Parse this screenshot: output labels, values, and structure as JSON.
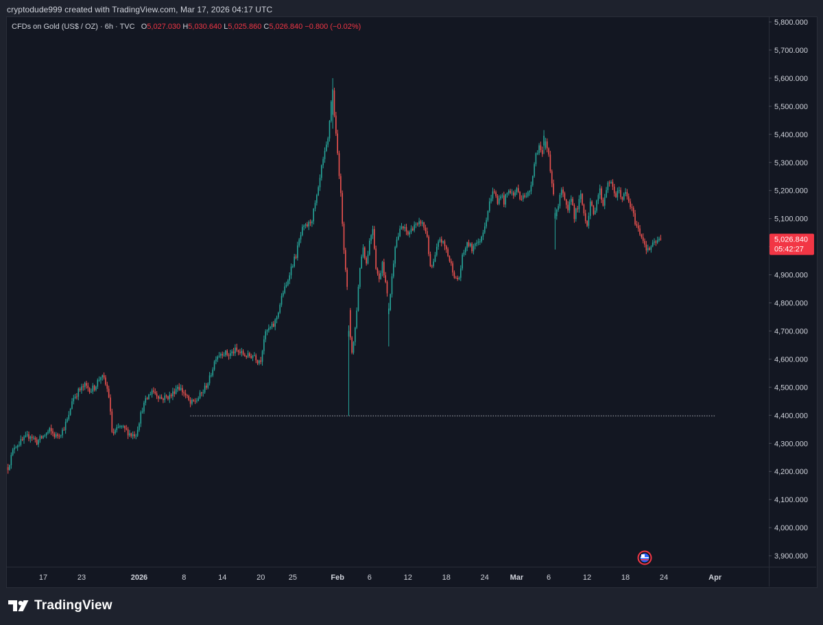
{
  "header": {
    "caption": "cryptodude999 created with TradingView.com, Mar 17, 2026 04:17 UTC"
  },
  "legend": {
    "symbol": "CFDs on Gold (US$ / OZ)",
    "interval": "6h",
    "source": "TVC",
    "o_label": "O",
    "o_value": "5,027.030",
    "h_label": "H",
    "h_value": "5,030.640",
    "l_label": "L",
    "l_value": "5,025.860",
    "c_label": "C",
    "c_value": "5,026.840",
    "change": "−0.800 (−0.02%)"
  },
  "price_tag": {
    "price": "5,026.840",
    "countdown": "05:42:27"
  },
  "brand": {
    "name": "TradingView"
  },
  "colors": {
    "up": "#26a69a",
    "down": "#ef5350",
    "background": "#131722",
    "page": "#1e222d",
    "text": "#d1d4dc",
    "tag": "#f23645"
  },
  "chart_data": {
    "type": "candlestick",
    "title": "CFDs on Gold (US$ / OZ) · 6h · TVC",
    "ylim": [
      3875,
      5810
    ],
    "y_ticks": [
      3900,
      4000,
      4100,
      4200,
      4300,
      4400,
      4500,
      4600,
      4700,
      4800,
      4900,
      5000,
      5100,
      5200,
      5300,
      5400,
      5500,
      5600,
      5700,
      5800
    ],
    "y_tick_labels": [
      "3,900.000",
      "4,000.000",
      "4,100.000",
      "4,200.000",
      "4,300.000",
      "4,400.000",
      "4,500.000",
      "4,600.000",
      "4,700.000",
      "4,800.000",
      "4,900.000",
      "5,000.000",
      "5,100.000",
      "5,200.000",
      "5,300.000",
      "5,400.000",
      "5,500.000",
      "5,600.000",
      "5,700.000",
      "5,800.000"
    ],
    "x_ticks": [
      {
        "label": "17",
        "day": 0,
        "bold": false
      },
      {
        "label": "23",
        "day": 6,
        "bold": false
      },
      {
        "label": "2026",
        "day": 15,
        "bold": true
      },
      {
        "label": "8",
        "day": 22,
        "bold": false
      },
      {
        "label": "14",
        "day": 28,
        "bold": false
      },
      {
        "label": "20",
        "day": 34,
        "bold": false
      },
      {
        "label": "25",
        "day": 39,
        "bold": false
      },
      {
        "label": "Feb",
        "day": 46,
        "bold": true
      },
      {
        "label": "6",
        "day": 51,
        "bold": false
      },
      {
        "label": "12",
        "day": 57,
        "bold": false
      },
      {
        "label": "18",
        "day": 63,
        "bold": false
      },
      {
        "label": "24",
        "day": 69,
        "bold": false
      },
      {
        "label": "Mar",
        "day": 74,
        "bold": true
      },
      {
        "label": "6",
        "day": 79,
        "bold": false
      },
      {
        "label": "12",
        "day": 85,
        "bold": false
      },
      {
        "label": "18",
        "day": 91,
        "bold": false
      },
      {
        "label": "24",
        "day": 97,
        "bold": false
      },
      {
        "label": "Apr",
        "day": 105,
        "bold": true
      }
    ],
    "horizontal_line": {
      "value": 4398,
      "start_day": 23,
      "end_day": 105,
      "style": "dotted"
    },
    "last_price": 5026.84,
    "path_points": [
      [
        -5.5,
        4215
      ],
      [
        -4.5,
        4290
      ],
      [
        -3.5,
        4305
      ],
      [
        -2.0,
        4330
      ],
      [
        -1.0,
        4305
      ],
      [
        0.0,
        4325
      ],
      [
        1.0,
        4345
      ],
      [
        2.0,
        4325
      ],
      [
        3.0,
        4345
      ],
      [
        4.0,
        4395
      ],
      [
        4.5,
        4455
      ],
      [
        5.5,
        4485
      ],
      [
        6.5,
        4505
      ],
      [
        7.5,
        4490
      ],
      [
        8.0,
        4500
      ],
      [
        9.0,
        4540
      ],
      [
        9.5,
        4525
      ],
      [
        10.2,
        4480
      ],
      [
        10.8,
        4330
      ],
      [
        12.0,
        4360
      ],
      [
        13.0,
        4345
      ],
      [
        13.8,
        4330
      ],
      [
        14.5,
        4335
      ],
      [
        15.5,
        4425
      ],
      [
        16.0,
        4450
      ],
      [
        17.0,
        4490
      ],
      [
        18.5,
        4460
      ],
      [
        20.0,
        4470
      ],
      [
        21.0,
        4505
      ],
      [
        22.0,
        4480
      ],
      [
        23.0,
        4440
      ],
      [
        24.0,
        4455
      ],
      [
        25.0,
        4485
      ],
      [
        26.0,
        4530
      ],
      [
        27.0,
        4610
      ],
      [
        28.0,
        4625
      ],
      [
        29.0,
        4615
      ],
      [
        30.0,
        4630
      ],
      [
        31.0,
        4620
      ],
      [
        32.0,
        4610
      ],
      [
        33.0,
        4615
      ],
      [
        33.5,
        4595
      ],
      [
        34.0,
        4600
      ],
      [
        34.5,
        4675
      ],
      [
        35.0,
        4700
      ],
      [
        36.0,
        4720
      ],
      [
        36.5,
        4750
      ],
      [
        37.5,
        4840
      ],
      [
        38.0,
        4860
      ],
      [
        38.5,
        4910
      ],
      [
        39.5,
        4970
      ],
      [
        40.0,
        5020
      ],
      [
        40.5,
        5060
      ],
      [
        41.5,
        5080
      ],
      [
        42.0,
        5100
      ],
      [
        43.0,
        5200
      ],
      [
        43.5,
        5280
      ],
      [
        44.5,
        5380
      ],
      [
        45.0,
        5520
      ],
      [
        45.3,
        5560
      ],
      [
        45.6,
        5430
      ],
      [
        46.2,
        5280
      ],
      [
        46.5,
        5180
      ],
      [
        47.0,
        5000
      ],
      [
        47.5,
        4850
      ],
      [
        48.0,
        4680
      ],
      [
        48.3,
        4620
      ],
      [
        48.8,
        4720
      ],
      [
        49.5,
        4930
      ],
      [
        50.0,
        5000
      ],
      [
        50.5,
        4940
      ],
      [
        51.0,
        5020
      ],
      [
        51.5,
        5070
      ],
      [
        52.0,
        4930
      ],
      [
        52.5,
        4880
      ],
      [
        53.0,
        4950
      ],
      [
        53.5,
        4870
      ],
      [
        54.0,
        4780
      ],
      [
        54.5,
        4890
      ],
      [
        55.0,
        5010
      ],
      [
        55.5,
        5040
      ],
      [
        56.0,
        5070
      ],
      [
        56.5,
        5060
      ],
      [
        57.0,
        5045
      ],
      [
        57.5,
        5060
      ],
      [
        58.0,
        5080
      ],
      [
        58.5,
        5070
      ],
      [
        59.0,
        5090
      ],
      [
        59.5,
        5070
      ],
      [
        60.0,
        5040
      ],
      [
        60.5,
        4920
      ],
      [
        61.0,
        4940
      ],
      [
        61.5,
        4990
      ],
      [
        62.0,
        5030
      ],
      [
        62.5,
        5010
      ],
      [
        63.0,
        4990
      ],
      [
        63.5,
        4950
      ],
      [
        64.0,
        4920
      ],
      [
        64.5,
        4880
      ],
      [
        65.0,
        4890
      ],
      [
        65.5,
        4960
      ],
      [
        66.0,
        5000
      ],
      [
        66.5,
        5010
      ],
      [
        67.0,
        4990
      ],
      [
        67.5,
        5020
      ],
      [
        68.0,
        5010
      ],
      [
        68.5,
        5040
      ],
      [
        69.0,
        5080
      ],
      [
        69.5,
        5130
      ],
      [
        70.0,
        5180
      ],
      [
        70.5,
        5200
      ],
      [
        71.0,
        5150
      ],
      [
        71.5,
        5190
      ],
      [
        72.0,
        5160
      ],
      [
        72.5,
        5190
      ],
      [
        73.0,
        5200
      ],
      [
        73.5,
        5180
      ],
      [
        74.0,
        5210
      ],
      [
        74.5,
        5170
      ],
      [
        75.0,
        5190
      ],
      [
        75.5,
        5175
      ],
      [
        76.0,
        5200
      ],
      [
        76.5,
        5260
      ],
      [
        77.0,
        5330
      ],
      [
        77.5,
        5360
      ],
      [
        78.0,
        5320
      ],
      [
        78.5,
        5370
      ],
      [
        79.0,
        5330
      ],
      [
        79.5,
        5230
      ],
      [
        80.0,
        5120
      ],
      [
        80.5,
        5150
      ],
      [
        81.0,
        5200
      ],
      [
        81.5,
        5160
      ],
      [
        82.0,
        5120
      ],
      [
        82.5,
        5180
      ],
      [
        83.0,
        5110
      ],
      [
        83.5,
        5140
      ],
      [
        84.0,
        5180
      ],
      [
        84.5,
        5120
      ],
      [
        85.0,
        5080
      ],
      [
        85.5,
        5160
      ],
      [
        86.0,
        5110
      ],
      [
        86.5,
        5170
      ],
      [
        87.0,
        5200
      ],
      [
        87.5,
        5150
      ],
      [
        88.0,
        5210
      ],
      [
        88.5,
        5230
      ],
      [
        89.0,
        5210
      ],
      [
        89.5,
        5180
      ],
      [
        90.0,
        5200
      ],
      [
        90.5,
        5170
      ],
      [
        91.0,
        5190
      ],
      [
        91.5,
        5160
      ],
      [
        92.0,
        5130
      ],
      [
        92.5,
        5090
      ],
      [
        93.0,
        5060
      ],
      [
        93.5,
        5040
      ],
      [
        94.0,
        5010
      ],
      [
        94.5,
        4985
      ],
      [
        95.0,
        5000
      ],
      [
        95.5,
        5010
      ],
      [
        96.0,
        5020
      ],
      [
        96.5,
        5026.84
      ]
    ],
    "notable_candles": [
      {
        "day": 45.3,
        "open": 5470,
        "high": 5600,
        "low": 5420,
        "close": 5560
      },
      {
        "day": 47.8,
        "open": 4680,
        "high": 4720,
        "low": 4398,
        "close": 4700
      },
      {
        "day": 53.9,
        "open": 4760,
        "high": 4800,
        "low": 4645,
        "close": 4780
      },
      {
        "day": 78.3,
        "open": 5360,
        "high": 5415,
        "low": 5330,
        "close": 5395
      },
      {
        "day": 79.9,
        "open": 5100,
        "high": 5140,
        "low": 4990,
        "close": 5120
      }
    ]
  }
}
